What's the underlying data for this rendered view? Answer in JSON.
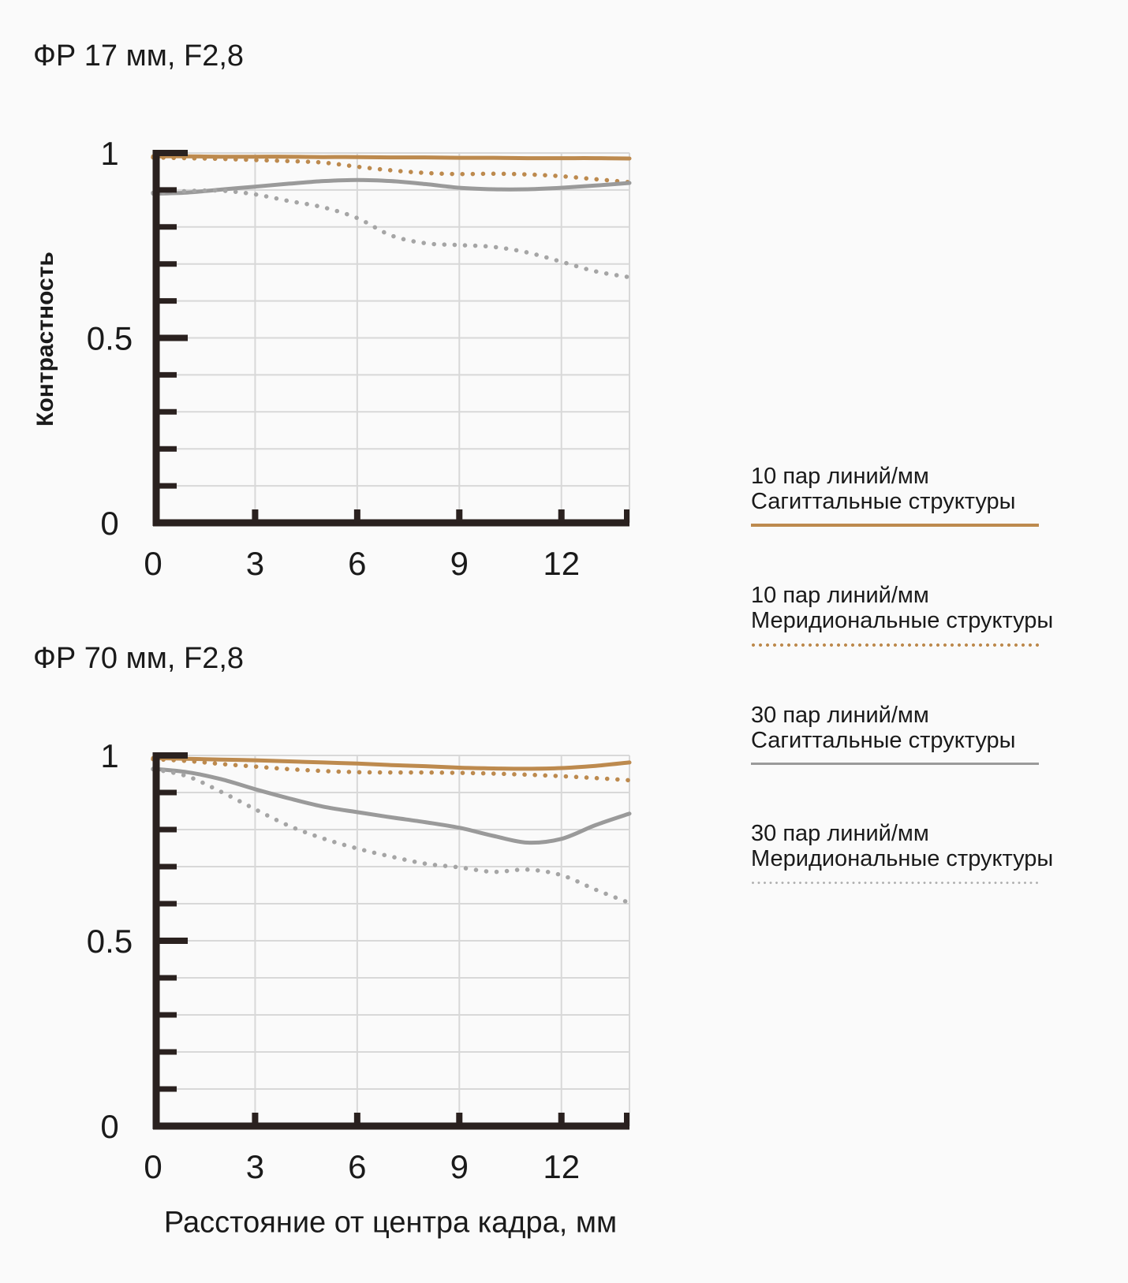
{
  "y_axis_title": "Контрастность",
  "x_axis_title": "Расстояние от центра кадра, мм",
  "colors": {
    "bg": "#fafafa",
    "text": "#1a1a1a",
    "grid": "#d8d8d8",
    "axis": "#2a211f",
    "tan": "#bd8a4e",
    "gray_solid": "#9a9a9a",
    "gray_dotted": "#a5a5a5",
    "legend_gray_dot": "#b1b1b1"
  },
  "legend": [
    {
      "line1": "10 пар линий/мм",
      "line2": "Сагиттальные структуры",
      "pattern": "solid",
      "color": "#bd8a4e"
    },
    {
      "line1": "10 пар линий/мм",
      "line2": "Меридиональные структуры",
      "pattern": "dotted",
      "color": "#bd8a4e"
    },
    {
      "line1": "30 пар линий/мм",
      "line2": "Сагиттальные структуры",
      "pattern": "solid",
      "color": "#9a9a9a"
    },
    {
      "line1": "30 пар линий/мм",
      "line2": "Меридиональные структуры",
      "pattern": "dotted",
      "color": "#b1b1b1"
    }
  ],
  "chart_data": [
    {
      "type": "line",
      "title": "ФР 17 мм, F2,8",
      "xlabel": "Расстояние от центра кадра, мм",
      "ylabel": "Контрастность",
      "xlim": [
        0,
        14
      ],
      "ylim": [
        0,
        1
      ],
      "grid": true,
      "x_step": 1,
      "x_ticks": [
        0,
        3,
        6,
        9,
        12
      ],
      "y_ticks": [
        {
          "v": 0,
          "label": "0"
        },
        {
          "v": 0.5,
          "label": "0.5"
        },
        {
          "v": 1,
          "label": "1"
        }
      ],
      "series": [
        {
          "name": "10 пар линий/мм Сагиттальные структуры",
          "pattern": "solid",
          "color": "#bd8a4e",
          "values": [
            0.991,
            0.991,
            0.99,
            0.99,
            0.99,
            0.989,
            0.989,
            0.988,
            0.988,
            0.987,
            0.987,
            0.986,
            0.986,
            0.986,
            0.985
          ]
        },
        {
          "name": "10 пар линий/мм Меридиональные структуры",
          "pattern": "dotted",
          "color": "#bd8a4e",
          "values": [
            0.988,
            0.986,
            0.984,
            0.981,
            0.978,
            0.974,
            0.963,
            0.953,
            0.946,
            0.943,
            0.944,
            0.942,
            0.937,
            0.929,
            0.921
          ]
        },
        {
          "name": "30 пар линий/мм Сагиттальные структуры",
          "pattern": "solid",
          "color": "#9a9a9a",
          "values": [
            0.89,
            0.893,
            0.901,
            0.909,
            0.917,
            0.924,
            0.927,
            0.924,
            0.916,
            0.906,
            0.902,
            0.902,
            0.906,
            0.912,
            0.919
          ]
        },
        {
          "name": "30 пар линий/мм Меридиональные структуры",
          "pattern": "dotted",
          "color": "#a5a5a5",
          "values": [
            0.892,
            0.897,
            0.898,
            0.888,
            0.87,
            0.853,
            0.824,
            0.777,
            0.756,
            0.751,
            0.746,
            0.731,
            0.706,
            0.68,
            0.664
          ]
        }
      ]
    },
    {
      "type": "line",
      "title": "ФР 70 мм, F2,8",
      "xlabel": "Расстояние от центра кадра, мм",
      "ylabel": "Контрастность",
      "xlim": [
        0,
        14
      ],
      "ylim": [
        0,
        1
      ],
      "grid": true,
      "x_step": 1,
      "x_ticks": [
        0,
        3,
        6,
        9,
        12
      ],
      "y_ticks": [
        {
          "v": 0,
          "label": "0"
        },
        {
          "v": 0.5,
          "label": "0.5"
        },
        {
          "v": 1,
          "label": "1"
        }
      ],
      "series": [
        {
          "name": "10 пар линий/мм Сагиттальные структуры",
          "pattern": "solid",
          "color": "#bd8a4e",
          "values": [
            0.993,
            0.991,
            0.989,
            0.987,
            0.984,
            0.981,
            0.978,
            0.974,
            0.971,
            0.967,
            0.965,
            0.964,
            0.966,
            0.972,
            0.981
          ]
        },
        {
          "name": "10 пар линий/мм Меридиональные структуры",
          "pattern": "dotted",
          "color": "#bd8a4e",
          "values": [
            0.99,
            0.985,
            0.977,
            0.97,
            0.963,
            0.958,
            0.955,
            0.954,
            0.954,
            0.953,
            0.951,
            0.948,
            0.944,
            0.939,
            0.933
          ]
        },
        {
          "name": "30 пар линий/мм Сагиттальные структуры",
          "pattern": "solid",
          "color": "#9a9a9a",
          "values": [
            0.964,
            0.955,
            0.936,
            0.909,
            0.884,
            0.862,
            0.847,
            0.833,
            0.82,
            0.805,
            0.783,
            0.765,
            0.775,
            0.812,
            0.843
          ]
        },
        {
          "name": "30 пар линий/мм Меридиональные структуры",
          "pattern": "dotted",
          "color": "#a5a5a5",
          "values": [
            0.963,
            0.944,
            0.902,
            0.855,
            0.81,
            0.776,
            0.749,
            0.727,
            0.708,
            0.698,
            0.686,
            0.692,
            0.677,
            0.638,
            0.602
          ]
        }
      ]
    }
  ]
}
